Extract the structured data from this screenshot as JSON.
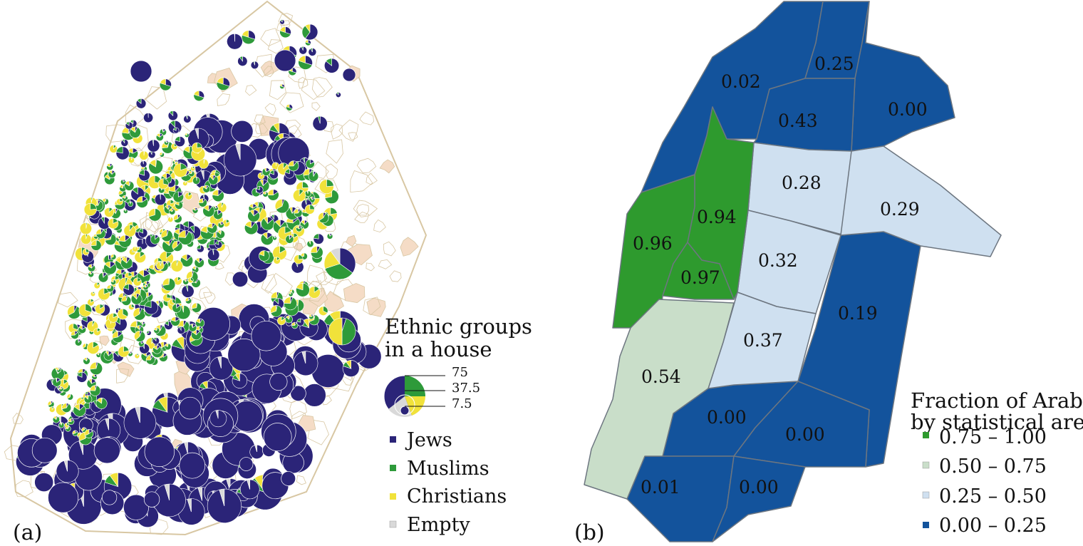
{
  "panel_a": {
    "label": "(a)",
    "legend": {
      "title_line1": "Ethnic groups",
      "title_line2": "in a house",
      "size_scale": [
        "75",
        "37.5",
        "7.5"
      ],
      "items": [
        {
          "label": "Jews",
          "color": "#2b2478"
        },
        {
          "label": "Muslims",
          "color": "#2e9a3a"
        },
        {
          "label": "Christians",
          "color": "#f1e23a"
        },
        {
          "label": "Empty",
          "color": "#d9d9d9"
        }
      ]
    },
    "colors": {
      "cell_edges": "#d8c7a3",
      "empty_cell_fill": "#f5dcc6",
      "background": "#ffffff"
    }
  },
  "panel_b": {
    "label": "(b)",
    "legend": {
      "title_line1": "Fraction of Arabs",
      "title_line2": "by statistical area",
      "classes": [
        {
          "label": "0.75 – 1.00",
          "color": "#2e9a2e"
        },
        {
          "label": "0.50 – 0.75",
          "color": "#c9dec9"
        },
        {
          "label": "0.25 – 0.50",
          "color": "#cfe0f0"
        },
        {
          "label": "0.00 – 0.25",
          "color": "#13539c"
        }
      ]
    },
    "areas": [
      {
        "value": "0.02"
      },
      {
        "value": "0.25"
      },
      {
        "value": "0.00"
      },
      {
        "value": "0.43"
      },
      {
        "value": "0.28"
      },
      {
        "value": "0.29"
      },
      {
        "value": "0.94"
      },
      {
        "value": "0.96"
      },
      {
        "value": "0.32"
      },
      {
        "value": "0.97"
      },
      {
        "value": "0.19"
      },
      {
        "value": "0.37"
      },
      {
        "value": "0.54"
      },
      {
        "value": "0.00"
      },
      {
        "value": "0.00"
      },
      {
        "value": "0.01"
      },
      {
        "value": "0.00"
      }
    ]
  }
}
